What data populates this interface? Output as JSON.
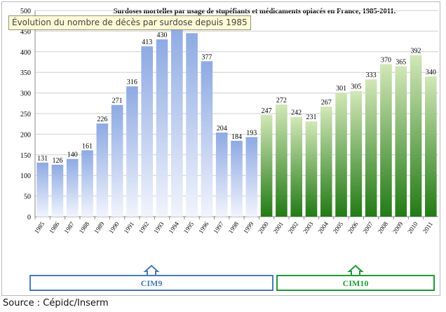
{
  "tooltip": "Évolution du nombre de décès par surdose depuis 1985",
  "source": "Source : Cépidc/Inserm",
  "chart_data": {
    "type": "bar",
    "title": "Surdoses mortelles par usage de stupéfiants et médicaments opiacés en France, 1985-2011.",
    "xlabel": "",
    "ylabel": "",
    "ylim": [
      0,
      500
    ],
    "yticks": [
      0,
      50,
      100,
      150,
      200,
      250,
      300,
      350,
      400,
      450,
      500
    ],
    "grid": true,
    "categories": [
      "1985",
      "1986",
      "1987",
      "1988",
      "1989",
      "1990",
      "1991",
      "1992",
      "1993",
      "1994",
      "1995",
      "1996",
      "1997",
      "1998",
      "1999",
      "2000",
      "2001",
      "2002",
      "2003",
      "2004",
      "2005",
      "2006",
      "2007",
      "2008",
      "2009",
      "2010",
      "2011"
    ],
    "values": [
      131,
      126,
      140,
      161,
      226,
      271,
      316,
      413,
      430,
      465,
      445,
      377,
      204,
      184,
      193,
      247,
      272,
      242,
      231,
      267,
      301,
      305,
      333,
      370,
      365,
      392,
      340
    ],
    "data_labels": [
      "131",
      "126",
      "140",
      "161",
      "226",
      "271",
      "316",
      "413",
      "430",
      "",
      "",
      "377",
      "204",
      "184",
      "193",
      "247",
      "272",
      "242",
      "231",
      "267",
      "301",
      "305",
      "333",
      "370",
      "365",
      "392",
      "340"
    ],
    "groups": [
      {
        "label": "CIM9",
        "from": "1985",
        "to": "1999",
        "color_top": "#8eaae3",
        "color_bottom": "#f1f4fc",
        "border": "#4a7ab8"
      },
      {
        "label": "CIM10",
        "from": "2000",
        "to": "2011",
        "color_top": "#d2e7b8",
        "color_bottom": "#237a16",
        "border": "#1f9a36"
      }
    ]
  }
}
